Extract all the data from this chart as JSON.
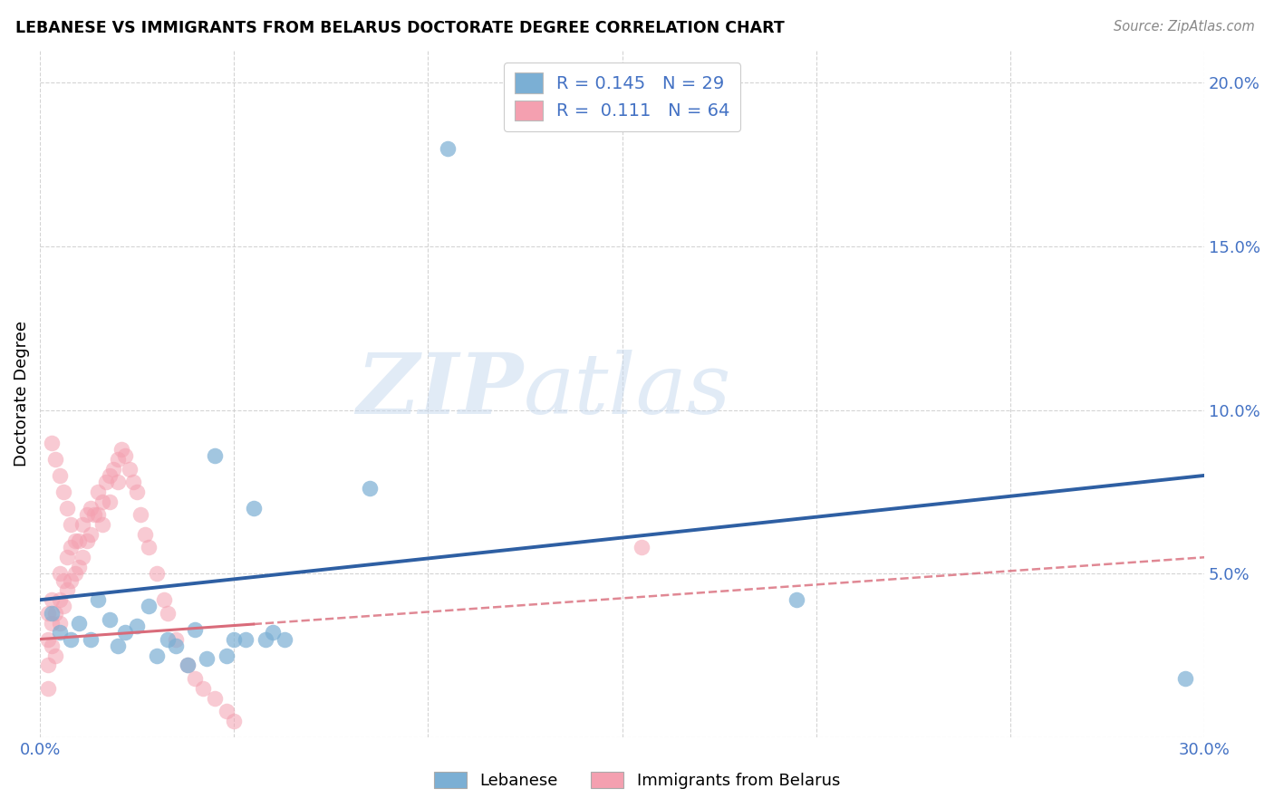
{
  "title": "LEBANESE VS IMMIGRANTS FROM BELARUS DOCTORATE DEGREE CORRELATION CHART",
  "source": "Source: ZipAtlas.com",
  "ylabel": "Doctorate Degree",
  "xlim": [
    0.0,
    0.3
  ],
  "ylim": [
    0.0,
    0.21
  ],
  "xticks": [
    0.0,
    0.05,
    0.1,
    0.15,
    0.2,
    0.25,
    0.3
  ],
  "yticks": [
    0.0,
    0.05,
    0.1,
    0.15,
    0.2
  ],
  "color_blue": "#7bafd4",
  "color_pink": "#f4a0b0",
  "line_blue": "#2e5fa3",
  "line_pink": "#d96b7a",
  "legend_R1": "0.145",
  "legend_N1": "29",
  "legend_R2": "0.111",
  "legend_N2": "64",
  "blue_scatter_x": [
    0.003,
    0.005,
    0.008,
    0.01,
    0.013,
    0.015,
    0.018,
    0.02,
    0.022,
    0.025,
    0.028,
    0.03,
    0.033,
    0.035,
    0.038,
    0.04,
    0.043,
    0.045,
    0.048,
    0.05,
    0.053,
    0.055,
    0.058,
    0.06,
    0.063,
    0.085,
    0.195,
    0.295,
    0.105
  ],
  "blue_scatter_y": [
    0.038,
    0.032,
    0.03,
    0.035,
    0.03,
    0.042,
    0.036,
    0.028,
    0.032,
    0.034,
    0.04,
    0.025,
    0.03,
    0.028,
    0.022,
    0.033,
    0.024,
    0.086,
    0.025,
    0.03,
    0.03,
    0.07,
    0.03,
    0.032,
    0.03,
    0.076,
    0.042,
    0.018,
    0.18
  ],
  "pink_scatter_x": [
    0.002,
    0.002,
    0.002,
    0.003,
    0.003,
    0.003,
    0.004,
    0.004,
    0.005,
    0.005,
    0.005,
    0.006,
    0.006,
    0.007,
    0.007,
    0.008,
    0.008,
    0.009,
    0.009,
    0.01,
    0.01,
    0.011,
    0.011,
    0.012,
    0.012,
    0.013,
    0.013,
    0.014,
    0.015,
    0.015,
    0.016,
    0.016,
    0.017,
    0.018,
    0.018,
    0.019,
    0.02,
    0.02,
    0.021,
    0.022,
    0.023,
    0.024,
    0.025,
    0.026,
    0.027,
    0.028,
    0.03,
    0.032,
    0.033,
    0.035,
    0.038,
    0.04,
    0.042,
    0.045,
    0.048,
    0.05,
    0.003,
    0.004,
    0.005,
    0.006,
    0.007,
    0.008,
    0.155,
    0.002
  ],
  "pink_scatter_y": [
    0.038,
    0.03,
    0.022,
    0.042,
    0.035,
    0.028,
    0.038,
    0.025,
    0.05,
    0.042,
    0.035,
    0.048,
    0.04,
    0.055,
    0.045,
    0.058,
    0.048,
    0.06,
    0.05,
    0.06,
    0.052,
    0.065,
    0.055,
    0.068,
    0.06,
    0.07,
    0.062,
    0.068,
    0.075,
    0.068,
    0.072,
    0.065,
    0.078,
    0.08,
    0.072,
    0.082,
    0.085,
    0.078,
    0.088,
    0.086,
    0.082,
    0.078,
    0.075,
    0.068,
    0.062,
    0.058,
    0.05,
    0.042,
    0.038,
    0.03,
    0.022,
    0.018,
    0.015,
    0.012,
    0.008,
    0.005,
    0.09,
    0.085,
    0.08,
    0.075,
    0.07,
    0.065,
    0.058,
    0.015
  ],
  "watermark_zip": "ZIP",
  "watermark_atlas": "atlas",
  "background_color": "#ffffff",
  "grid_color": "#d0d0d0"
}
